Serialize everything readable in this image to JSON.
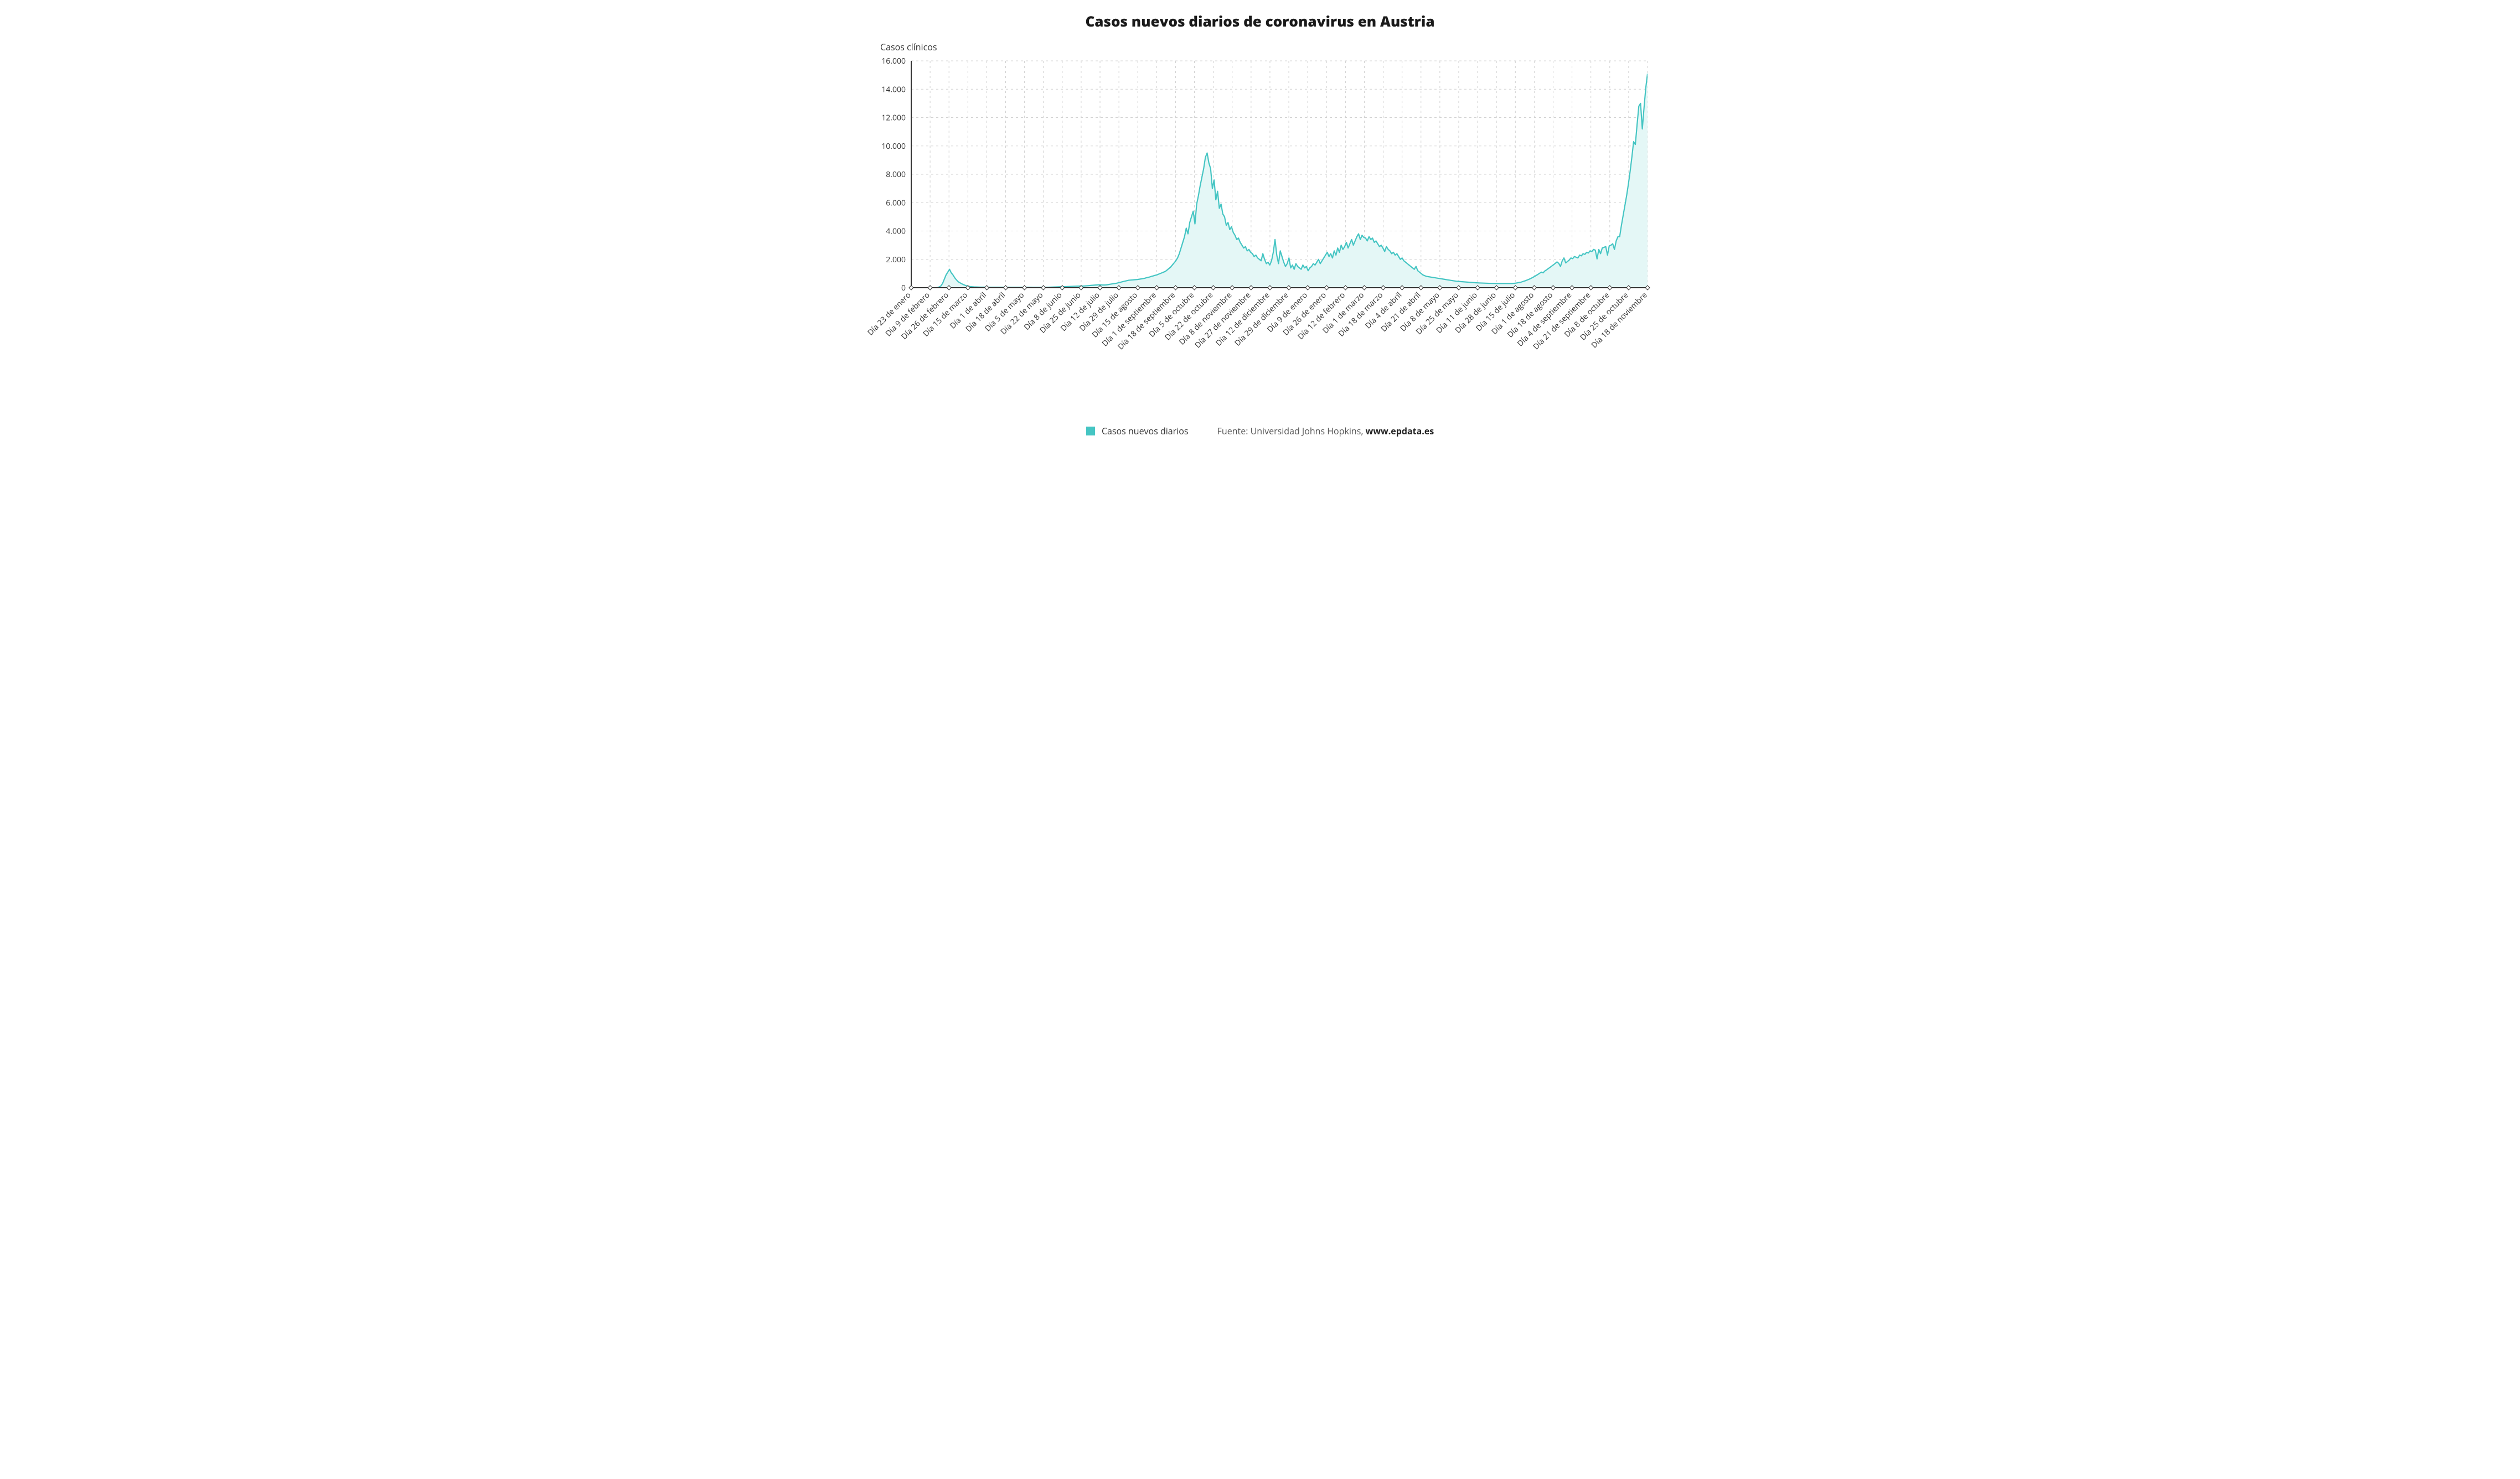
{
  "title": "Casos nuevos diarios de coronavirus en Austria",
  "y_axis_title": "Casos clínicos",
  "legend": {
    "swatch_color": "#45c5c3",
    "label": "Casos nuevos diarios",
    "source_prefix": "Fuente: ",
    "source_text": "Universidad Johns Hopkins, ",
    "source_site": "www.epdata.es"
  },
  "chart": {
    "type": "area",
    "background_color": "#ffffff",
    "grid_color": "#d0d0d0",
    "axis_color": "#333333",
    "tick_label_color": "#333333",
    "line_color": "#45c5c3",
    "fill_color": "#e4f7f6",
    "line_width": 2.2,
    "title_fontsize": 26,
    "title_fontweight": 800,
    "y_title_fontsize": 16,
    "legend_fontsize": 16,
    "x_tick_fontsize": 14,
    "y_tick_fontsize": 14,
    "x_label_rotation_deg": -45,
    "ylim": [
      0,
      16000
    ],
    "y_ticks": [
      0,
      2000,
      4000,
      6000,
      8000,
      10000,
      12000,
      14000,
      16000
    ],
    "y_tick_labels": [
      "0",
      "2.000",
      "4.000",
      "6.000",
      "8.000",
      "10.000",
      "12.000",
      "14.000",
      "16.000"
    ],
    "x_tick_labels": [
      "Día 23 de enero",
      "Día 9 de febrero",
      "Día 26 de febrero",
      "Día 15 de marzo",
      "Día 1 de abril",
      "Día 18 de abril",
      "Día 5 de mayo",
      "Día 22 de mayo",
      "Día 8 de junio",
      "Día 25 de junio",
      "Día 12 de julio",
      "Día 29 de julio",
      "Día 15 de agosto",
      "Día 1 de septiembre",
      "Día 18 de septiembre",
      "Día 5 de octubre",
      "Día 22 de octubre",
      "Día 8 de noviembre",
      "Día 27 de noviembre",
      "Día 12 de diciembre",
      "Día 29 de diciembre",
      "Día 9 de enero",
      "Día 26 de enero",
      "Día 12 de febrero",
      "Día 1 de marzo",
      "Día 18 de marzo",
      "Día 4 de abril",
      "Día 21 de abril",
      "Día 8 de mayo",
      "Día 25 de mayo",
      "Día 11 de junio",
      "Día 28 de junio",
      "Día 15 de julio",
      "Día 1 de agosto",
      "Día 18 de agosto",
      "Día 4 de septiembre",
      "Día 21 de septiembre",
      "Día 8 de octubre",
      "Día 25 de octubre",
      "Día 18 de noviembre"
    ],
    "values": [
      0,
      0,
      0,
      0,
      0,
      0,
      0,
      0,
      0,
      0,
      0,
      0,
      0,
      0,
      0,
      10,
      50,
      120,
      300,
      600,
      900,
      1100,
      1300,
      1050,
      900,
      700,
      550,
      420,
      350,
      280,
      220,
      170,
      130,
      100,
      80,
      70,
      60,
      55,
      50,
      45,
      40,
      40,
      38,
      36,
      35,
      35,
      35,
      35,
      35,
      35,
      35,
      35,
      35,
      35,
      35,
      35,
      30,
      30,
      28,
      28,
      28,
      28,
      28,
      28,
      28,
      28,
      28,
      28,
      28,
      28,
      25,
      25,
      25,
      25,
      25,
      25,
      25,
      25,
      30,
      35,
      40,
      45,
      50,
      55,
      60,
      65,
      70,
      70,
      75,
      80,
      85,
      90,
      95,
      100,
      105,
      110,
      115,
      120,
      120,
      120,
      130,
      140,
      150,
      160,
      170,
      180,
      190,
      200,
      210,
      200,
      190,
      190,
      200,
      220,
      240,
      260,
      280,
      300,
      320,
      350,
      380,
      410,
      440,
      470,
      500,
      530,
      540,
      550,
      560,
      570,
      580,
      600,
      620,
      640,
      660,
      700,
      730,
      760,
      800,
      830,
      870,
      900,
      950,
      1000,
      1050,
      1100,
      1150,
      1250,
      1350,
      1450,
      1600,
      1750,
      1900,
      2100,
      2400,
      2800,
      3200,
      3600,
      4200,
      3800,
      4600,
      5000,
      5400,
      4500,
      5900,
      6500,
      7200,
      7800,
      8400,
      9200,
      9500,
      8800,
      8400,
      7000,
      7600,
      6200,
      6800,
      5600,
      5900,
      5200,
      5000,
      4400,
      4600,
      4100,
      4300,
      3900,
      3700,
      3400,
      3500,
      3200,
      3000,
      2800,
      2900,
      2600,
      2700,
      2500,
      2400,
      2200,
      2300,
      2100,
      2000,
      1900,
      2400,
      2000,
      1700,
      1800,
      1600,
      1900,
      2500,
      3400,
      2300,
      1700,
      2600,
      2200,
      1800,
      1500,
      1700,
      2100,
      1400,
      1600,
      1300,
      1700,
      1500,
      1400,
      1300,
      1600,
      1400,
      1500,
      1200,
      1400,
      1500,
      1700,
      1600,
      1800,
      2000,
      1700,
      1900,
      2100,
      2300,
      2500,
      2200,
      2400,
      2100,
      2600,
      2300,
      2800,
      2500,
      3000,
      2700,
      2900,
      3200,
      2800,
      3100,
      3400,
      3000,
      3300,
      3600,
      3800,
      3400,
      3700,
      3550,
      3500,
      3300,
      3600,
      3400,
      3500,
      3200,
      3300,
      3100,
      2900,
      3000,
      2800,
      2550,
      2900,
      2700,
      2600,
      2400,
      2500,
      2300,
      2400,
      2200,
      2000,
      2100,
      1900,
      1800,
      1700,
      1600,
      1500,
      1400,
      1300,
      1500,
      1200,
      1100,
      1000,
      900,
      850,
      800,
      780,
      760,
      740,
      720,
      700,
      680,
      660,
      640,
      620,
      600,
      580,
      560,
      540,
      520,
      500,
      480,
      460,
      450,
      440,
      430,
      420,
      410,
      400,
      390,
      380,
      370,
      360,
      350,
      345,
      340,
      335,
      330,
      325,
      320,
      315,
      310,
      310,
      305,
      305,
      300,
      300,
      300,
      300,
      300,
      300,
      300,
      300,
      300,
      300,
      310,
      320,
      340,
      360,
      380,
      420,
      460,
      500,
      550,
      600,
      660,
      720,
      790,
      860,
      940,
      1020,
      1100,
      1050,
      1180,
      1260,
      1350,
      1440,
      1530,
      1620,
      1720,
      1820,
      1720,
      1500,
      1900,
      2100,
      1750,
      1850,
      1950,
      2100,
      2050,
      2200,
      2150,
      2100,
      2300,
      2250,
      2400,
      2350,
      2500,
      2450,
      2600,
      2550,
      2700,
      2650,
      2030,
      2700,
      2400,
      2800,
      2850,
      2900,
      2300,
      2950,
      3000,
      3100,
      2700,
      3300,
      3600,
      3600,
      4400,
      5100,
      5800,
      6500,
      7300,
      8200,
      9200,
      10300,
      10100,
      11500,
      12800,
      13000,
      11200,
      12700,
      14100,
      15100
    ]
  }
}
